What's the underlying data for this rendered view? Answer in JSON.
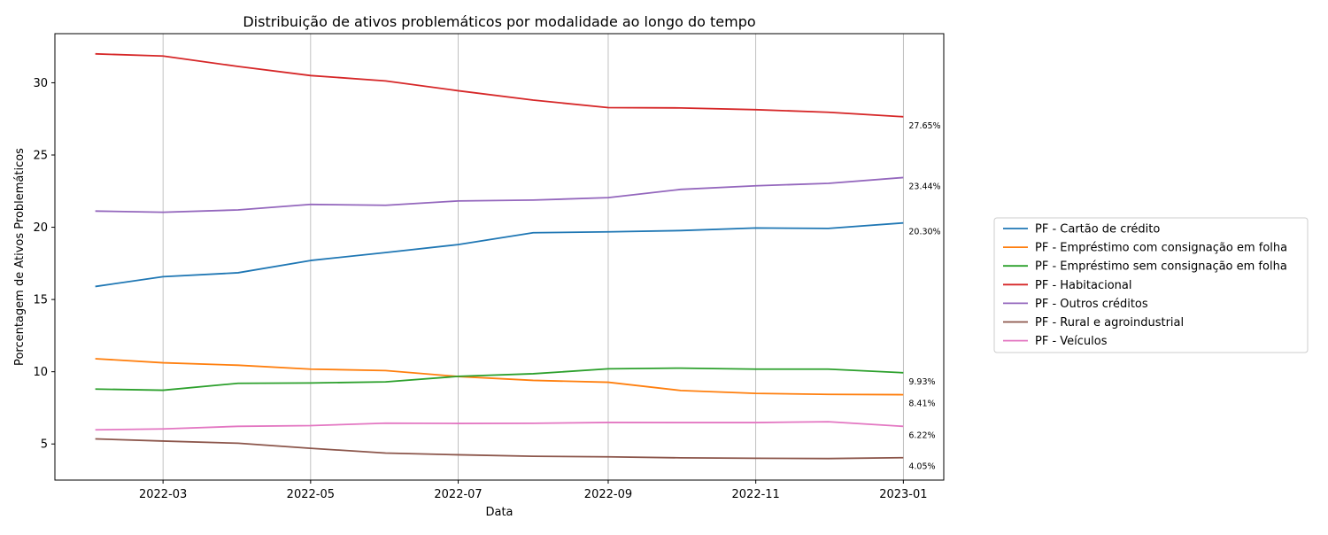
{
  "chart_data": {
    "type": "line",
    "title": "Distribuição de ativos problemáticos por modalidade ao longo do tempo",
    "xlabel": "Data",
    "ylabel": "Porcentagem de Ativos Problemáticos",
    "x": [
      "2022-02-01",
      "2022-03-01",
      "2022-04-01",
      "2022-05-01",
      "2022-06-01",
      "2022-07-01",
      "2022-08-01",
      "2022-09-01",
      "2022-10-01",
      "2022-11-01",
      "2022-12-01",
      "2023-01-01"
    ],
    "x_ticks": [
      "2022-03",
      "2022-05",
      "2022-07",
      "2022-09",
      "2022-11",
      "2023-01"
    ],
    "y_ticks": [
      5,
      10,
      15,
      20,
      25,
      30
    ],
    "ylim": [
      2.5,
      33.4
    ],
    "grid": "vertical lines at x ticks",
    "legend_placement": "right, outside plot",
    "series": [
      {
        "name": "PF - Cartão de crédito",
        "color": "#1f77b4",
        "end_label": "20.30%",
        "values": [
          15.9,
          16.58,
          16.85,
          17.7,
          18.25,
          18.8,
          19.62,
          19.68,
          19.77,
          19.95,
          19.92,
          20.3
        ]
      },
      {
        "name": "PF - Empréstimo com consignação em folha",
        "color": "#ff7f0e",
        "end_label": "8.41%",
        "values": [
          10.9,
          10.62,
          10.45,
          10.18,
          10.08,
          9.67,
          9.4,
          9.27,
          8.7,
          8.5,
          8.43,
          8.41
        ]
      },
      {
        "name": "PF - Empréstimo sem consignação em folha",
        "color": "#2ca02c",
        "end_label": "9.93%",
        "values": [
          8.8,
          8.72,
          9.2,
          9.22,
          9.3,
          9.68,
          9.86,
          10.2,
          10.25,
          10.18,
          10.18,
          9.93
        ]
      },
      {
        "name": "PF - Habitacional",
        "color": "#d62728",
        "end_label": "27.65%",
        "values": [
          32.0,
          31.85,
          31.13,
          30.5,
          30.13,
          29.45,
          28.8,
          28.28,
          28.26,
          28.14,
          27.96,
          27.65
        ]
      },
      {
        "name": "PF - Outros créditos",
        "color": "#9467bd",
        "end_label": "23.44%",
        "values": [
          21.12,
          21.04,
          21.2,
          21.58,
          21.52,
          21.82,
          21.88,
          22.05,
          22.62,
          22.87,
          23.04,
          23.44
        ]
      },
      {
        "name": "PF - Rural e agroindustrial",
        "color": "#8c564b",
        "end_label": "4.05%",
        "values": [
          5.35,
          5.2,
          5.05,
          4.7,
          4.37,
          4.25,
          4.15,
          4.11,
          4.04,
          4.01,
          3.99,
          4.05
        ]
      },
      {
        "name": "PF - Veículos",
        "color": "#e377c2",
        "end_label": "6.22%",
        "values": [
          5.98,
          6.04,
          6.22,
          6.27,
          6.44,
          6.42,
          6.43,
          6.49,
          6.48,
          6.48,
          6.54,
          6.22
        ]
      }
    ]
  }
}
